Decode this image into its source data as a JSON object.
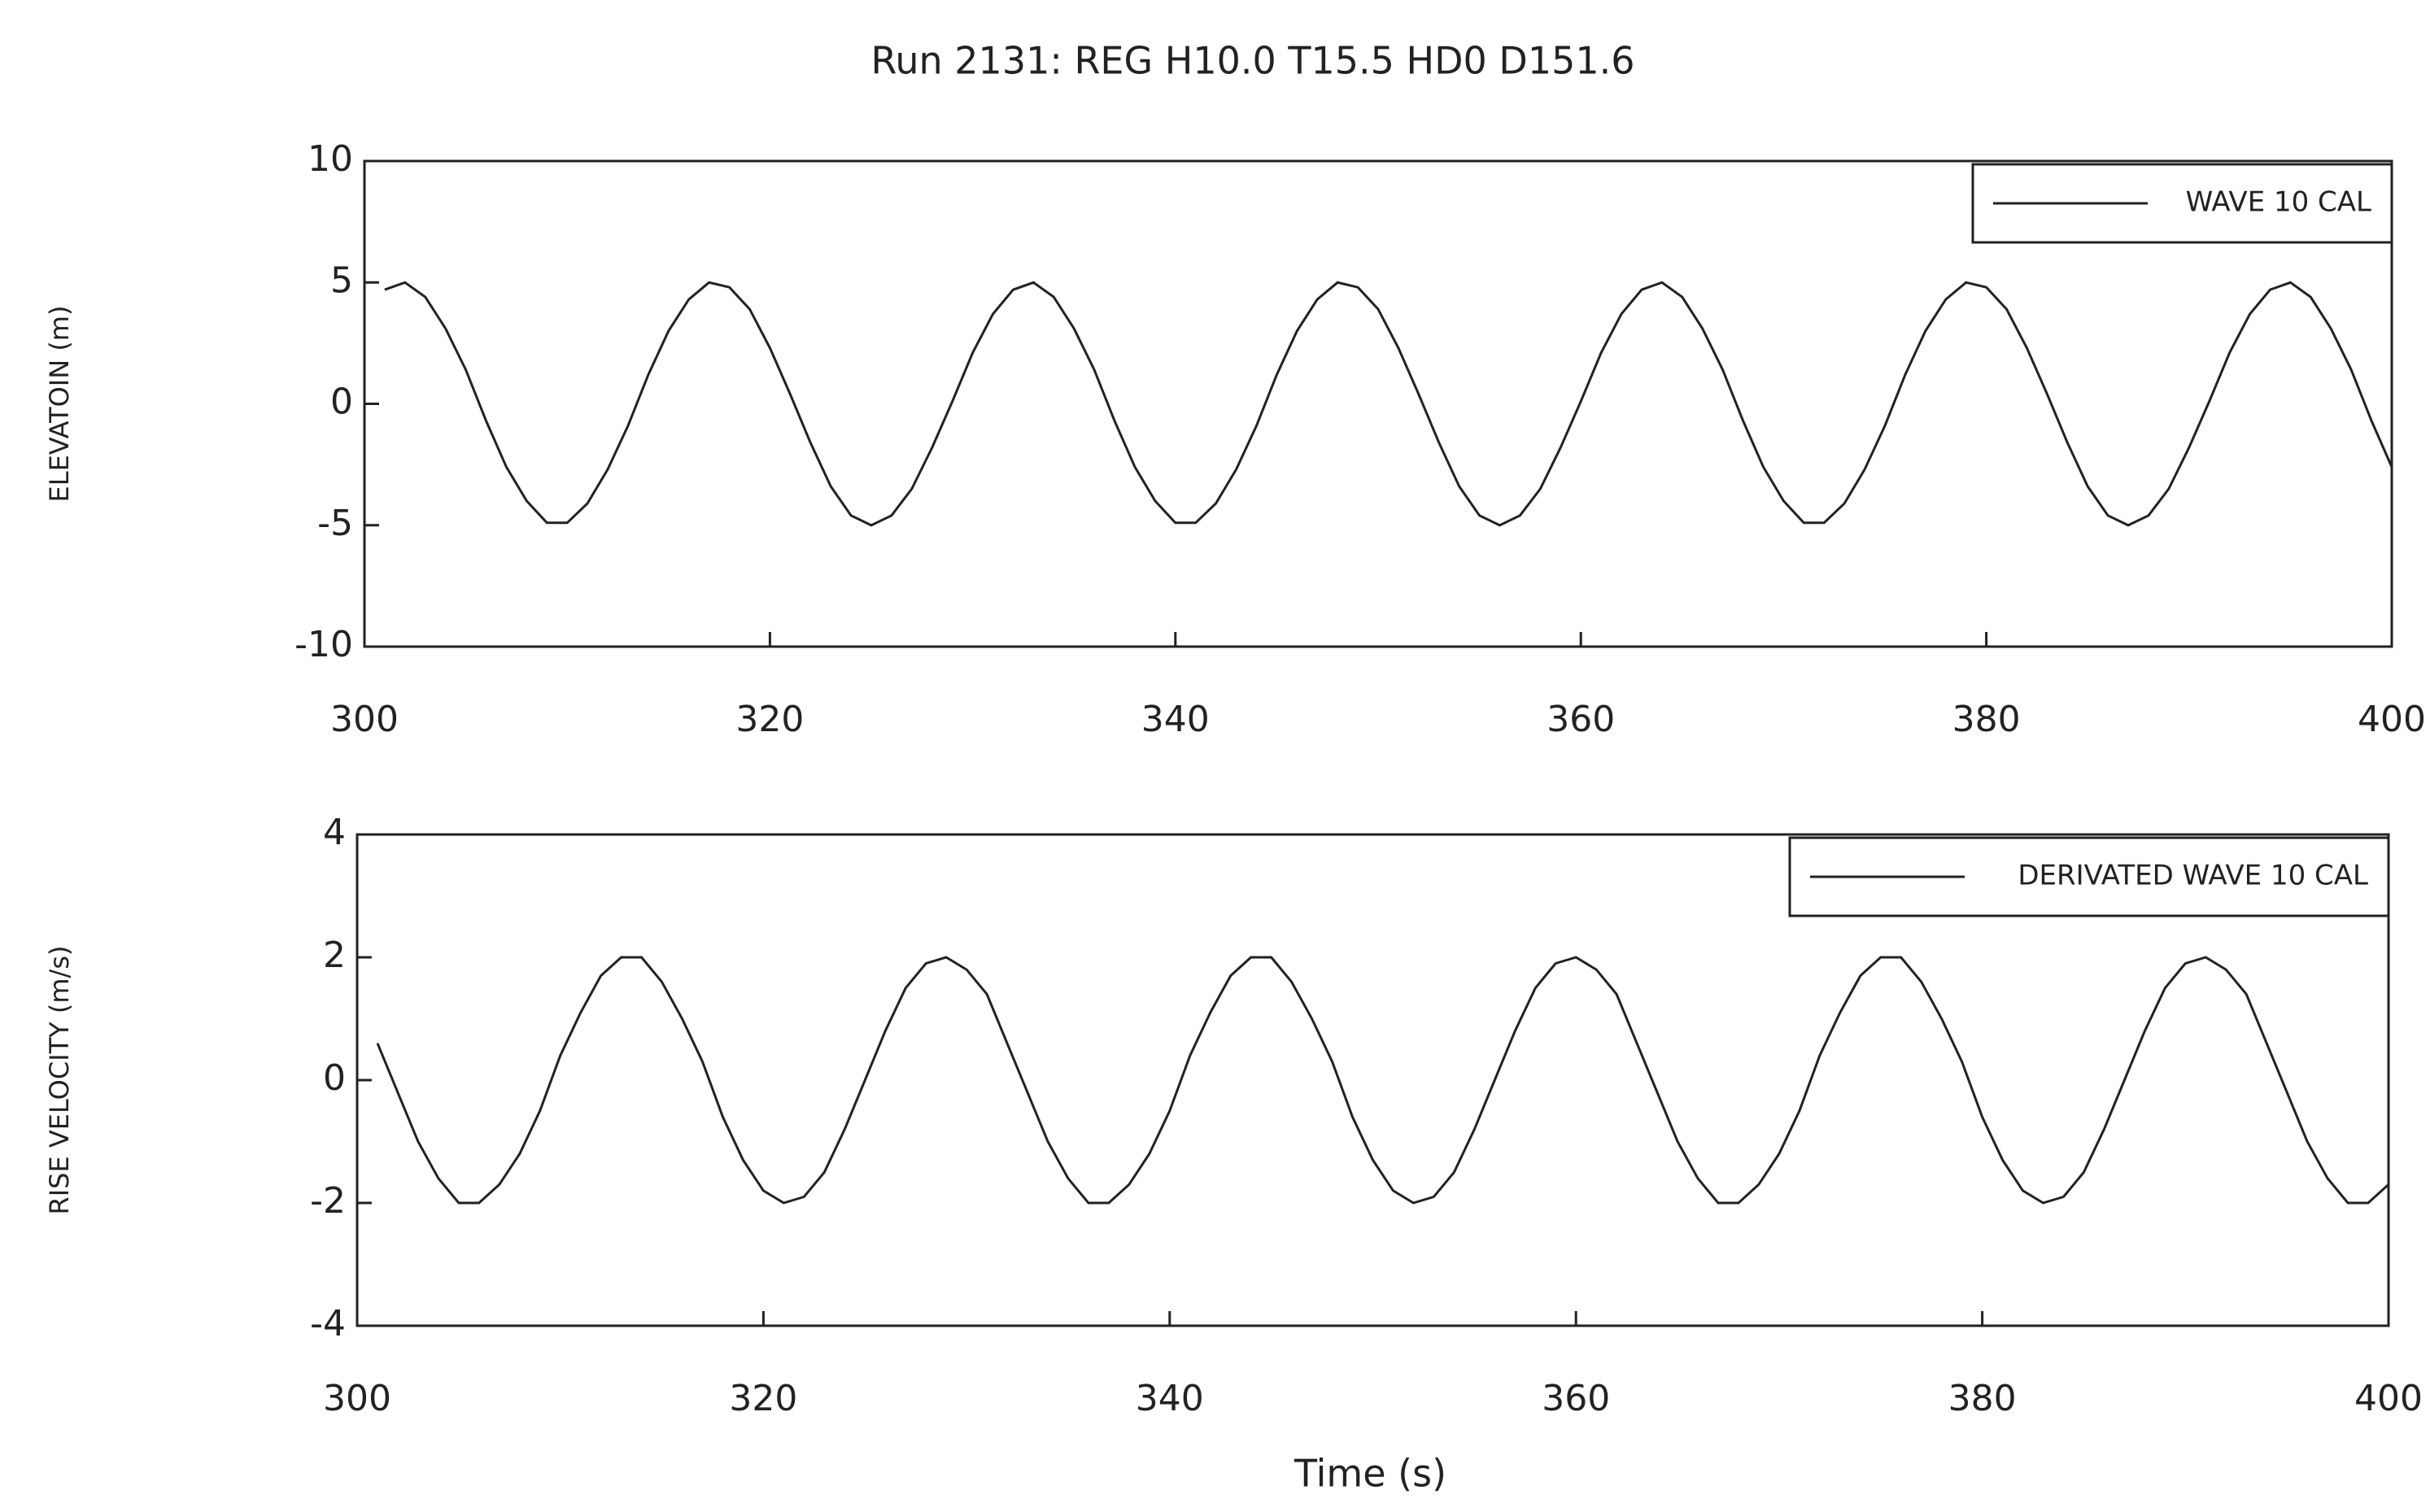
{
  "title": "Run 2131: REG H10.0 T15.5  HD0   D151.6",
  "chart_data": [
    {
      "type": "line",
      "ylabel": "ELEVATOIN (m)",
      "legend": "upper right",
      "xlim": [
        300,
        400
      ],
      "xticks": [
        300,
        320,
        340,
        360,
        380,
        400
      ],
      "ylim": [
        -10,
        10
      ],
      "yticks": [
        -10,
        -5,
        0,
        5,
        10
      ],
      "x": [
        301,
        302,
        303,
        304,
        305,
        306,
        307,
        308,
        309,
        310,
        311,
        312,
        313,
        314,
        315,
        316,
        317,
        318,
        319,
        320,
        321,
        322,
        323,
        324,
        325,
        326,
        327,
        328,
        329,
        330,
        331,
        332,
        333,
        334,
        335,
        336,
        337,
        338,
        339,
        340,
        341,
        342,
        343,
        344,
        345,
        346,
        347,
        348,
        349,
        350,
        351,
        352,
        353,
        354,
        355,
        356,
        357,
        358,
        359,
        360,
        361,
        362,
        363,
        364,
        365,
        366,
        367,
        368,
        369,
        370,
        371,
        372,
        373,
        374,
        375,
        376,
        377,
        378,
        379,
        380,
        381,
        382,
        383,
        384,
        385,
        386,
        387,
        388,
        389,
        390,
        391,
        392,
        393,
        394,
        395,
        396,
        397,
        398,
        399,
        400
      ],
      "series": [
        {
          "name": "WAVE 10 CAL",
          "color": "#222222",
          "values": [
            4.7,
            5.0,
            4.4,
            3.1,
            1.4,
            -0.7,
            -2.6,
            -4.0,
            -4.9,
            -4.9,
            -4.1,
            -2.7,
            -0.9,
            1.2,
            3.0,
            4.3,
            5.0,
            4.8,
            3.9,
            2.3,
            0.4,
            -1.6,
            -3.4,
            -4.6,
            -5.0,
            -4.6,
            -3.5,
            -1.8,
            0.1,
            2.1,
            3.7,
            4.7,
            5.0,
            4.4,
            3.1,
            1.4,
            -0.7,
            -2.6,
            -4.0,
            -4.9,
            -4.9,
            -4.1,
            -2.7,
            -0.9,
            1.2,
            3.0,
            4.3,
            5.0,
            4.8,
            3.9,
            2.3,
            0.4,
            -1.6,
            -3.4,
            -4.6,
            -5.0,
            -4.6,
            -3.5,
            -1.8,
            0.1,
            2.1,
            3.7,
            4.7,
            5.0,
            4.4,
            3.1,
            1.4,
            -0.7,
            -2.6,
            -4.0,
            -4.9,
            -4.9,
            -4.1,
            -2.7,
            -0.9,
            1.2,
            3.0,
            4.3,
            5.0,
            4.8,
            3.9,
            2.3,
            0.4,
            -1.6,
            -3.4,
            -4.6,
            -5.0,
            -4.6,
            -3.5,
            -1.8,
            0.1,
            2.1,
            3.7,
            4.7,
            5.0,
            4.4,
            3.1,
            1.4,
            -0.7,
            -2.6
          ]
        }
      ]
    },
    {
      "type": "line",
      "ylabel": "RISE VELOCITY (m/s)",
      "xlabel": "Time (s)",
      "legend": "upper right",
      "xlim": [
        300,
        400
      ],
      "xticks": [
        300,
        320,
        340,
        360,
        380,
        400
      ],
      "ylim": [
        -4,
        4
      ],
      "yticks": [
        -4,
        -2,
        0,
        2,
        4
      ],
      "x": [
        301,
        302,
        303,
        304,
        305,
        306,
        307,
        308,
        309,
        310,
        311,
        312,
        313,
        314,
        315,
        316,
        317,
        318,
        319,
        320,
        321,
        322,
        323,
        324,
        325,
        326,
        327,
        328,
        329,
        330,
        331,
        332,
        333,
        334,
        335,
        336,
        337,
        338,
        339,
        340,
        341,
        342,
        343,
        344,
        345,
        346,
        347,
        348,
        349,
        350,
        351,
        352,
        353,
        354,
        355,
        356,
        357,
        358,
        359,
        360,
        361,
        362,
        363,
        364,
        365,
        366,
        367,
        368,
        369,
        370,
        371,
        372,
        373,
        374,
        375,
        376,
        377,
        378,
        379,
        380,
        381,
        382,
        383,
        384,
        385,
        386,
        387,
        388,
        389,
        390,
        391,
        392,
        393,
        394,
        395,
        396,
        397,
        398,
        399,
        400
      ],
      "series": [
        {
          "name": "DERIVATED WAVE 10 CAL",
          "color": "#222222",
          "values": [
            0.6,
            -0.2,
            -1.0,
            -1.6,
            -2.0,
            -2.0,
            -1.7,
            -1.2,
            -0.5,
            0.4,
            1.1,
            1.7,
            2.0,
            2.0,
            1.6,
            1.0,
            0.3,
            -0.6,
            -1.3,
            -1.8,
            -2.0,
            -1.9,
            -1.5,
            -0.8,
            0.0,
            0.8,
            1.5,
            1.9,
            2.0,
            1.8,
            1.4,
            0.6,
            -0.2,
            -1.0,
            -1.6,
            -2.0,
            -2.0,
            -1.7,
            -1.2,
            -0.5,
            0.4,
            1.1,
            1.7,
            2.0,
            2.0,
            1.6,
            1.0,
            0.3,
            -0.6,
            -1.3,
            -1.8,
            -2.0,
            -1.9,
            -1.5,
            -0.8,
            0.0,
            0.8,
            1.5,
            1.9,
            2.0,
            1.8,
            1.4,
            0.6,
            -0.2,
            -1.0,
            -1.6,
            -2.0,
            -2.0,
            -1.7,
            -1.2,
            -0.5,
            0.4,
            1.1,
            1.7,
            2.0,
            2.0,
            1.6,
            1.0,
            0.3,
            -0.6,
            -1.3,
            -1.8,
            -2.0,
            -1.9,
            -1.5,
            -0.8,
            0.0,
            0.8,
            1.5,
            1.9,
            2.0,
            1.8,
            1.4,
            0.6,
            -0.2,
            -1.0,
            -1.6,
            -2.0,
            -2.0,
            -1.7
          ]
        }
      ]
    }
  ]
}
